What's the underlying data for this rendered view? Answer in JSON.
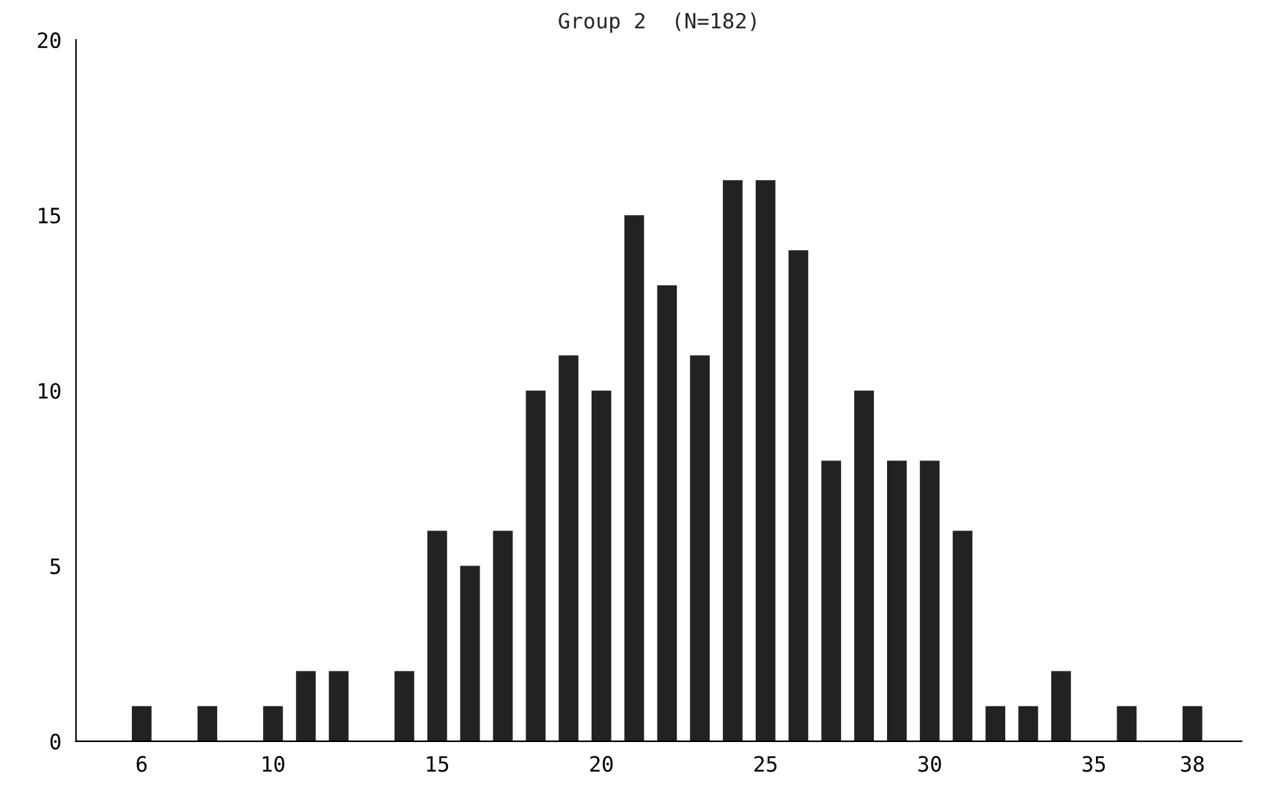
{
  "chart_data": {
    "type": "bar",
    "title": "Group 2  (N=182)",
    "x": [
      6,
      8,
      10,
      11,
      12,
      14,
      15,
      16,
      17,
      18,
      19,
      20,
      21,
      22,
      23,
      24,
      25,
      26,
      27,
      28,
      29,
      30,
      31,
      32,
      33,
      34,
      36,
      38
    ],
    "values": [
      1,
      1,
      1,
      2,
      2,
      2,
      6,
      5,
      6,
      10,
      11,
      10,
      15,
      13,
      11,
      16,
      16,
      14,
      8,
      10,
      8,
      8,
      6,
      1,
      1,
      2,
      1,
      1
    ],
    "color": "#222222",
    "xlim": [
      4,
      39.5
    ],
    "xticks": [
      6,
      10,
      15,
      20,
      25,
      30,
      35,
      38
    ],
    "ylim": [
      0,
      20
    ],
    "yticks": [
      0,
      5,
      10,
      15,
      20
    ],
    "grid": false
  }
}
